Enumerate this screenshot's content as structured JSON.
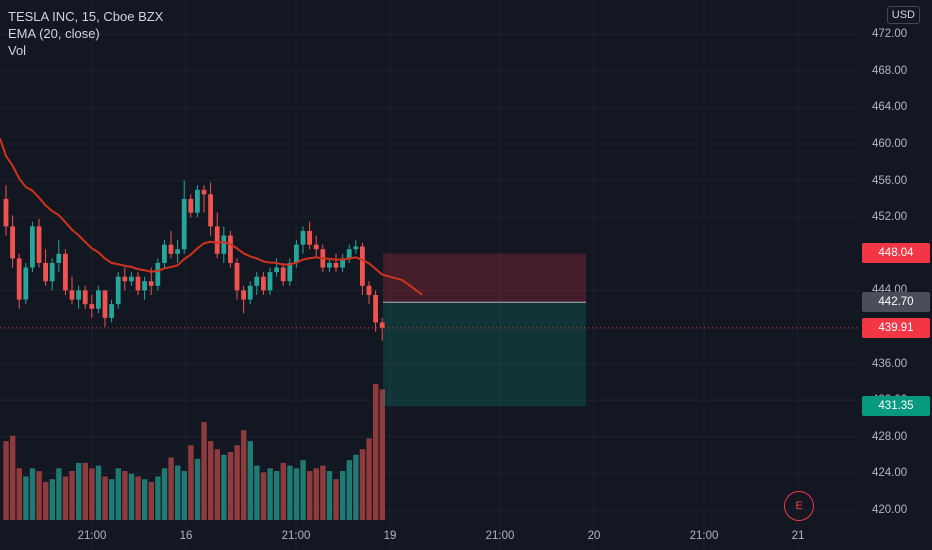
{
  "legend": {
    "symbol": "TESLA INC, 15, Cboe BZX",
    "indicator": "EMA (20, close)",
    "volume": "Vol"
  },
  "currency": "USD",
  "price_ticks": [
    "472.00",
    "468.00",
    "464.00",
    "460.00",
    "456.00",
    "452.00",
    "444.00",
    "436.00",
    "432.00",
    "428.00",
    "424.00",
    "420.00"
  ],
  "price_labels": {
    "stop": "448.04",
    "entry": "442.70",
    "current": "439.91",
    "target": "431.35"
  },
  "time_ticks": [
    "21:00",
    "16",
    "21:00",
    "19",
    "21:00",
    "20",
    "21:00",
    "21"
  ],
  "earnings_marker": "E",
  "colors": {
    "up": "#26a69a",
    "down": "#ef5350",
    "ema": "#d0331c",
    "background": "#131722",
    "stop_zone": "#f23645",
    "target_zone": "#089981"
  },
  "chart_data": {
    "type": "candlestick",
    "price_range": [
      418.5,
      474
    ],
    "position": {
      "entry": 442.7,
      "stop": 448.04,
      "target": 431.35,
      "last": 439.91
    },
    "candles": [
      [
        454.0,
        455.5,
        450.0,
        451.0
      ],
      [
        451.0,
        452.2,
        446.5,
        447.5
      ],
      [
        447.5,
        448.0,
        442.0,
        443.0
      ],
      [
        443.0,
        447.0,
        442.5,
        446.5
      ],
      [
        446.5,
        451.5,
        446.0,
        451.0
      ],
      [
        451.0,
        451.8,
        446.5,
        447.0
      ],
      [
        447.0,
        448.5,
        444.5,
        445.0
      ],
      [
        445.0,
        447.5,
        444.0,
        447.0
      ],
      [
        447.0,
        449.5,
        446.0,
        448.0
      ],
      [
        448.0,
        448.5,
        443.5,
        444.0
      ],
      [
        444.0,
        445.5,
        442.5,
        443.0
      ],
      [
        443.0,
        444.5,
        442.0,
        444.0
      ],
      [
        444.0,
        444.5,
        442.0,
        442.5
      ],
      [
        442.5,
        443.5,
        441.0,
        442.0
      ],
      [
        442.0,
        444.5,
        441.5,
        444.0
      ],
      [
        444.0,
        444.0,
        440.0,
        441.0
      ],
      [
        441.0,
        443.0,
        440.5,
        442.5
      ],
      [
        442.5,
        446.0,
        442.0,
        445.5
      ],
      [
        445.5,
        446.5,
        444.0,
        445.0
      ],
      [
        445.0,
        446.0,
        444.5,
        445.5
      ],
      [
        445.5,
        446.0,
        443.5,
        444.0
      ],
      [
        444.0,
        445.5,
        443.0,
        445.0
      ],
      [
        445.0,
        446.5,
        443.5,
        444.5
      ],
      [
        444.5,
        447.5,
        444.0,
        447.0
      ],
      [
        447.0,
        449.5,
        446.5,
        449.0
      ],
      [
        449.0,
        450.5,
        447.5,
        448.0
      ],
      [
        448.0,
        449.5,
        447.0,
        448.5
      ],
      [
        448.5,
        456.0,
        448.0,
        454.0
      ],
      [
        454.0,
        454.5,
        452.0,
        452.5
      ],
      [
        452.5,
        455.5,
        452.0,
        455.0
      ],
      [
        455.0,
        455.5,
        452.5,
        454.5
      ],
      [
        454.5,
        455.8,
        450.0,
        451.0
      ],
      [
        451.0,
        452.5,
        447.5,
        448.0
      ],
      [
        448.0,
        451.0,
        447.0,
        450.0
      ],
      [
        450.0,
        450.5,
        446.5,
        447.0
      ],
      [
        447.0,
        447.5,
        443.0,
        444.0
      ],
      [
        444.0,
        444.5,
        441.5,
        443.0
      ],
      [
        443.0,
        445.0,
        442.5,
        444.5
      ],
      [
        444.5,
        446.0,
        443.5,
        445.5
      ],
      [
        445.5,
        446.0,
        443.5,
        444.0
      ],
      [
        444.0,
        446.5,
        443.5,
        446.0
      ],
      [
        446.0,
        447.5,
        445.5,
        446.5
      ],
      [
        446.5,
        447.0,
        444.5,
        445.0
      ],
      [
        445.0,
        447.5,
        444.5,
        447.0
      ],
      [
        447.0,
        449.5,
        446.5,
        449.0
      ],
      [
        449.0,
        451.0,
        448.0,
        450.5
      ],
      [
        450.5,
        451.5,
        448.5,
        449.0
      ],
      [
        449.0,
        450.0,
        447.5,
        448.5
      ],
      [
        448.5,
        449.0,
        446.0,
        446.5
      ],
      [
        446.5,
        447.5,
        446.0,
        447.0
      ],
      [
        447.0,
        448.0,
        446.0,
        446.5
      ],
      [
        446.5,
        448.0,
        446.0,
        447.5
      ],
      [
        447.5,
        449.0,
        447.0,
        448.5
      ],
      [
        448.5,
        449.5,
        448.0,
        448.8
      ],
      [
        448.8,
        449.2,
        443.5,
        444.5
      ],
      [
        444.5,
        445.0,
        442.5,
        443.5
      ],
      [
        443.5,
        444.0,
        439.5,
        440.5
      ],
      [
        440.5,
        441.0,
        438.5,
        439.91
      ]
    ],
    "volume": [
      58,
      62,
      38,
      32,
      38,
      36,
      28,
      30,
      38,
      32,
      36,
      42,
      42,
      38,
      40,
      32,
      30,
      38,
      36,
      34,
      32,
      30,
      28,
      32,
      38,
      46,
      40,
      36,
      55,
      45,
      72,
      58,
      52,
      48,
      50,
      55,
      66,
      58,
      40,
      35,
      38,
      36,
      42,
      40,
      38,
      44,
      36,
      38,
      40,
      36,
      30,
      36,
      44,
      48,
      52,
      60,
      100,
      96
    ],
    "volume_up": [
      false,
      false,
      false,
      true,
      true,
      false,
      false,
      true,
      true,
      false,
      false,
      true,
      false,
      false,
      true,
      false,
      true,
      true,
      false,
      true,
      false,
      true,
      false,
      true,
      true,
      false,
      true,
      true,
      false,
      true,
      false,
      false,
      false,
      true,
      false,
      false,
      false,
      true,
      true,
      false,
      true,
      true,
      false,
      true,
      true,
      true,
      false,
      false,
      false,
      true,
      false,
      true,
      true,
      true,
      false,
      false,
      false,
      false
    ]
  }
}
